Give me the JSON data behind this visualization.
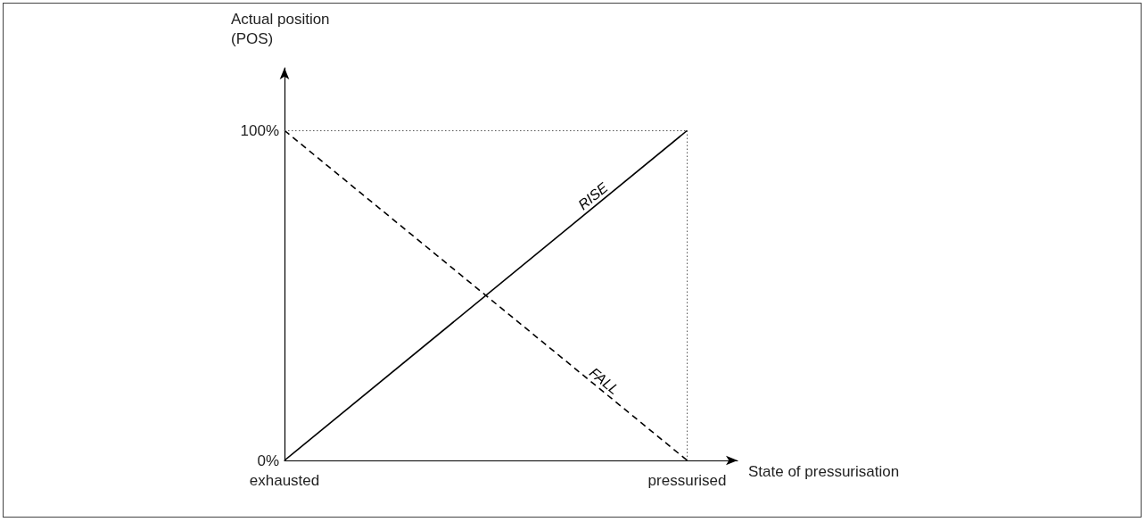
{
  "chart_data": {
    "type": "line",
    "xlabel": "State of pressurisation",
    "ylabel": "Actual position\n(POS)",
    "categories": [
      "exhausted",
      "pressurised"
    ],
    "series": [
      {
        "name": "RISE",
        "color": "#000000",
        "values": [
          0,
          100
        ],
        "line_style": "solid"
      },
      {
        "name": "FALL",
        "color": "#000000",
        "values": [
          100,
          0
        ],
        "line_style": "dashed"
      }
    ],
    "ylim": [
      0,
      119
    ],
    "yticks": [
      {
        "value": 0,
        "label": "0%"
      },
      {
        "value": 100,
        "label": "100%"
      }
    ],
    "ref_lines": [
      {
        "axis": "y",
        "value": 100,
        "color": "#555555",
        "line_style": "dotted"
      },
      {
        "axis": "x",
        "value": "pressurised",
        "color": "#555555",
        "line_style": "dotted"
      }
    ],
    "grid": false,
    "legend": false
  }
}
